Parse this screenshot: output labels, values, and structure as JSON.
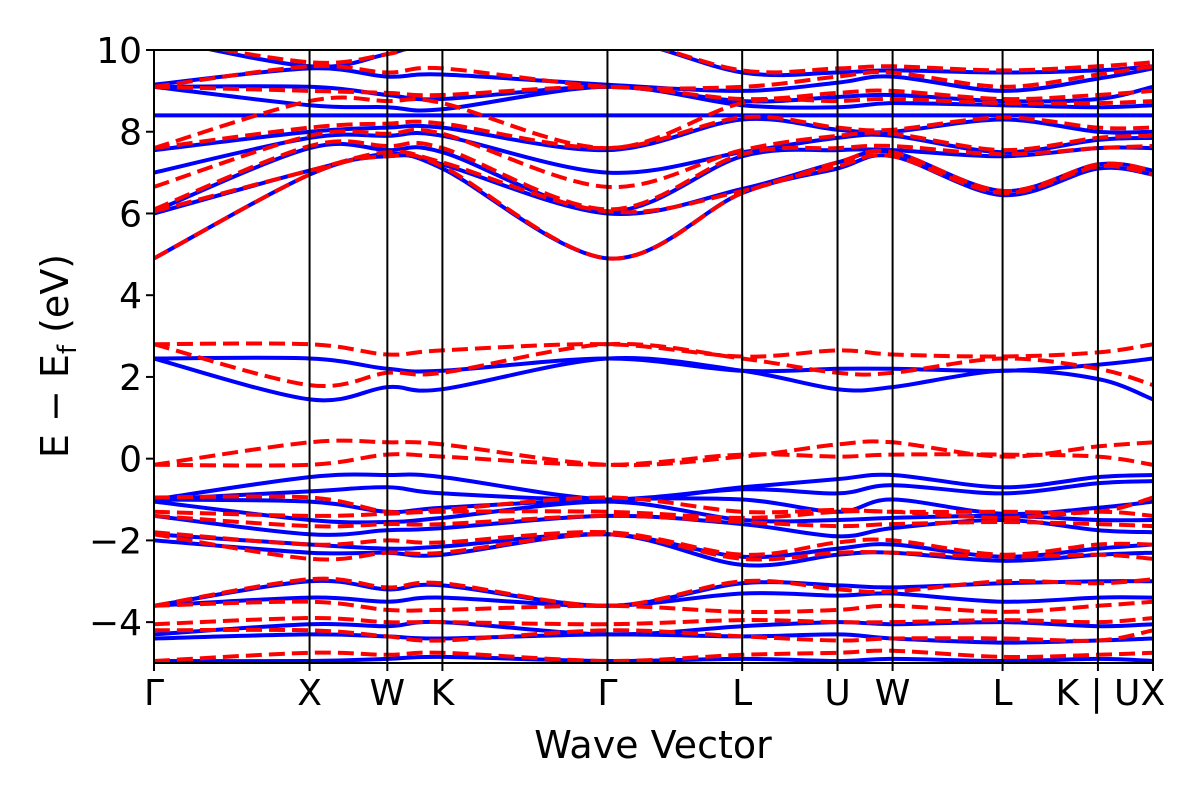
{
  "chart_data": {
    "type": "line",
    "title": "",
    "xlabel": "Wave Vector",
    "ylabel_main": "E − E",
    "ylabel_sub": "f",
    "ylabel_unit": " (eV)",
    "ylim": [
      -5,
      10
    ],
    "yticks": [
      10,
      8,
      6,
      4,
      2,
      0,
      -2,
      -4
    ],
    "ytick_labels": [
      "10",
      "8",
      "6",
      "4",
      "2",
      "0",
      "−2",
      "−4"
    ],
    "kpath": [
      {
        "label": "Γ",
        "k": 0.0
      },
      {
        "label": "X",
        "k": 1.0
      },
      {
        "label": "W",
        "k": 1.5
      },
      {
        "label": "K",
        "k": 1.854
      },
      {
        "label": "Γ",
        "k": 2.915
      },
      {
        "label": "L",
        "k": 3.781
      },
      {
        "label": "U",
        "k": 4.394
      },
      {
        "label": "W",
        "k": 4.748
      },
      {
        "label": "L",
        "k": 5.455
      },
      {
        "label": "K | U",
        "k": 6.068
      },
      {
        "label": "X",
        "k": 6.422
      }
    ],
    "xlim": [
      0,
      6.422
    ],
    "grid": false,
    "series": [
      {
        "style": "solid",
        "color": "#0000ff",
        "bands": [
          [
            -4.95,
            -4.95,
            -4.9,
            -4.85,
            -4.95,
            -4.9,
            -4.95,
            -4.9,
            -4.95,
            -4.9,
            -4.95
          ],
          [
            -4.4,
            -4.3,
            -4.35,
            -4.4,
            -4.3,
            -4.35,
            -4.3,
            -4.4,
            -4.5,
            -4.45,
            -4.4
          ],
          [
            -4.3,
            -4.05,
            -4.1,
            -4.0,
            -4.3,
            -4.1,
            -4.0,
            -4.05,
            -4.0,
            -4.1,
            -4.05
          ],
          [
            -3.6,
            -3.4,
            -3.5,
            -3.4,
            -3.6,
            -3.3,
            -3.35,
            -3.3,
            -3.5,
            -3.4,
            -3.4
          ],
          [
            -3.6,
            -3.0,
            -3.2,
            -3.1,
            -3.6,
            -3.05,
            -3.1,
            -3.15,
            -3.05,
            -3.0,
            -3.0
          ],
          [
            -2.0,
            -2.3,
            -2.3,
            -2.35,
            -1.85,
            -2.6,
            -2.35,
            -2.3,
            -2.5,
            -2.35,
            -2.3
          ],
          [
            -1.85,
            -2.1,
            -2.2,
            -2.15,
            -1.85,
            -2.4,
            -2.2,
            -2.1,
            -2.4,
            -2.2,
            -2.1
          ],
          [
            -1.4,
            -1.85,
            -1.75,
            -1.7,
            -1.4,
            -1.6,
            -1.9,
            -1.7,
            -1.5,
            -1.75,
            -1.8
          ],
          [
            -1.05,
            -1.5,
            -1.55,
            -1.45,
            -1.05,
            -1.5,
            -1.5,
            -1.45,
            -1.4,
            -1.5,
            -1.5
          ],
          [
            -1.0,
            -1.05,
            -1.3,
            -1.2,
            -1.0,
            -1.0,
            -1.3,
            -1.0,
            -1.35,
            -1.2,
            -1.05
          ],
          [
            -1.0,
            -0.8,
            -0.7,
            -0.85,
            -1.0,
            -0.75,
            -0.85,
            -0.65,
            -0.85,
            -0.6,
            -0.55
          ],
          [
            -1.0,
            -0.45,
            -0.4,
            -0.45,
            -1.0,
            -0.7,
            -0.5,
            -0.4,
            -0.7,
            -0.45,
            -0.4
          ],
          [
            2.45,
            1.45,
            1.75,
            1.7,
            2.45,
            2.15,
            1.7,
            1.75,
            2.15,
            1.95,
            1.45
          ],
          [
            2.45,
            2.45,
            2.2,
            2.15,
            2.45,
            2.15,
            2.2,
            2.2,
            2.15,
            2.3,
            2.45
          ],
          [
            4.9,
            6.95,
            7.4,
            7.1,
            4.9,
            6.5,
            7.1,
            7.4,
            6.45,
            7.1,
            6.95
          ],
          [
            6.0,
            7.05,
            7.45,
            7.2,
            6.0,
            6.6,
            7.25,
            7.5,
            6.55,
            7.2,
            7.05
          ],
          [
            6.05,
            7.6,
            7.55,
            7.5,
            6.05,
            7.4,
            7.55,
            7.55,
            7.4,
            7.6,
            7.6
          ],
          [
            7.0,
            7.85,
            7.9,
            7.9,
            7.0,
            7.5,
            7.85,
            7.9,
            7.5,
            7.8,
            7.85
          ],
          [
            7.55,
            8.0,
            8.1,
            8.1,
            7.55,
            8.3,
            8.05,
            8.0,
            8.3,
            8.0,
            8.0
          ],
          [
            8.4,
            8.4,
            8.4,
            8.4,
            8.4,
            8.4,
            8.4,
            8.4,
            8.4,
            8.4,
            8.4
          ],
          [
            9.1,
            8.65,
            8.6,
            8.55,
            9.1,
            8.65,
            8.6,
            8.7,
            8.65,
            8.6,
            8.65
          ],
          [
            9.1,
            9.1,
            8.9,
            8.8,
            9.1,
            8.75,
            8.85,
            8.9,
            8.75,
            8.8,
            9.1
          ],
          [
            9.15,
            9.55,
            9.35,
            9.4,
            9.15,
            9.0,
            9.2,
            9.35,
            9.0,
            9.3,
            9.55
          ],
          [
            10.3,
            9.6,
            9.9,
            10.2,
            10.3,
            9.45,
            9.45,
            9.5,
            9.45,
            9.5,
            9.6
          ]
        ]
      },
      {
        "style": "dashed",
        "color": "#ff0000",
        "bands": [
          [
            -4.95,
            -4.75,
            -4.8,
            -4.75,
            -4.95,
            -4.8,
            -4.75,
            -4.7,
            -4.85,
            -4.8,
            -4.75
          ],
          [
            -4.2,
            -4.2,
            -4.35,
            -4.45,
            -4.2,
            -4.35,
            -4.45,
            -4.4,
            -4.4,
            -4.45,
            -4.2
          ],
          [
            -4.05,
            -3.9,
            -4.0,
            -4.0,
            -4.05,
            -3.95,
            -4.0,
            -4.0,
            -3.95,
            -4.0,
            -3.9
          ],
          [
            -3.6,
            -3.5,
            -3.7,
            -3.7,
            -3.6,
            -3.75,
            -3.7,
            -3.6,
            -3.75,
            -3.6,
            -3.5
          ],
          [
            -3.6,
            -2.95,
            -3.15,
            -3.05,
            -3.6,
            -3.0,
            -3.2,
            -3.25,
            -3.0,
            -3.05,
            -2.95
          ],
          [
            -1.85,
            -2.45,
            -2.3,
            -2.3,
            -1.85,
            -2.45,
            -2.3,
            -2.3,
            -2.4,
            -2.35,
            -2.45
          ],
          [
            -1.8,
            -2.1,
            -2.0,
            -2.05,
            -1.8,
            -2.35,
            -2.05,
            -2.0,
            -2.35,
            -2.1,
            -2.1
          ],
          [
            -1.4,
            -1.65,
            -1.6,
            -1.6,
            -1.4,
            -1.55,
            -1.65,
            -1.6,
            -1.55,
            -1.6,
            -1.65
          ],
          [
            -1.3,
            -1.4,
            -1.35,
            -1.3,
            -1.3,
            -1.45,
            -1.3,
            -1.3,
            -1.45,
            -1.3,
            -1.4
          ],
          [
            -0.95,
            -0.95,
            -1.3,
            -1.25,
            -0.95,
            -1.3,
            -1.25,
            -1.3,
            -1.3,
            -1.3,
            -0.95
          ],
          [
            -0.15,
            -0.15,
            0.1,
            0.05,
            -0.15,
            0.1,
            0.05,
            0.1,
            0.1,
            0.05,
            -0.15
          ],
          [
            -0.15,
            0.4,
            0.4,
            0.35,
            -0.15,
            0.05,
            0.35,
            0.4,
            0.05,
            0.3,
            0.4
          ],
          [
            2.8,
            1.8,
            2.1,
            2.1,
            2.8,
            2.45,
            2.1,
            2.1,
            2.45,
            2.2,
            1.8
          ],
          [
            2.8,
            2.8,
            2.55,
            2.65,
            2.8,
            2.5,
            2.65,
            2.55,
            2.5,
            2.6,
            2.8
          ],
          [
            4.9,
            6.95,
            7.4,
            7.15,
            4.9,
            6.5,
            7.15,
            7.4,
            6.5,
            7.15,
            6.95
          ],
          [
            6.05,
            7.05,
            7.5,
            7.25,
            6.05,
            6.55,
            7.25,
            7.5,
            6.55,
            7.2,
            7.05
          ],
          [
            6.1,
            7.65,
            7.65,
            7.6,
            6.1,
            7.45,
            7.6,
            7.65,
            7.45,
            7.6,
            7.65
          ],
          [
            6.65,
            7.9,
            7.95,
            7.95,
            6.65,
            7.55,
            7.9,
            7.95,
            7.55,
            7.85,
            7.9
          ],
          [
            7.6,
            8.1,
            8.2,
            8.2,
            7.6,
            8.35,
            8.1,
            8.05,
            8.35,
            8.1,
            8.1
          ],
          [
            7.6,
            8.75,
            8.75,
            8.7,
            7.6,
            8.7,
            8.75,
            8.8,
            8.7,
            8.7,
            8.75
          ],
          [
            9.1,
            9.0,
            8.95,
            8.9,
            9.1,
            8.8,
            8.95,
            9.0,
            8.8,
            8.9,
            9.0
          ],
          [
            9.1,
            9.6,
            9.45,
            9.55,
            9.1,
            9.1,
            9.35,
            9.45,
            9.1,
            9.4,
            9.6
          ],
          [
            10.3,
            9.7,
            9.9,
            10.2,
            10.3,
            9.5,
            9.55,
            9.6,
            9.5,
            9.6,
            9.7
          ]
        ]
      }
    ]
  }
}
